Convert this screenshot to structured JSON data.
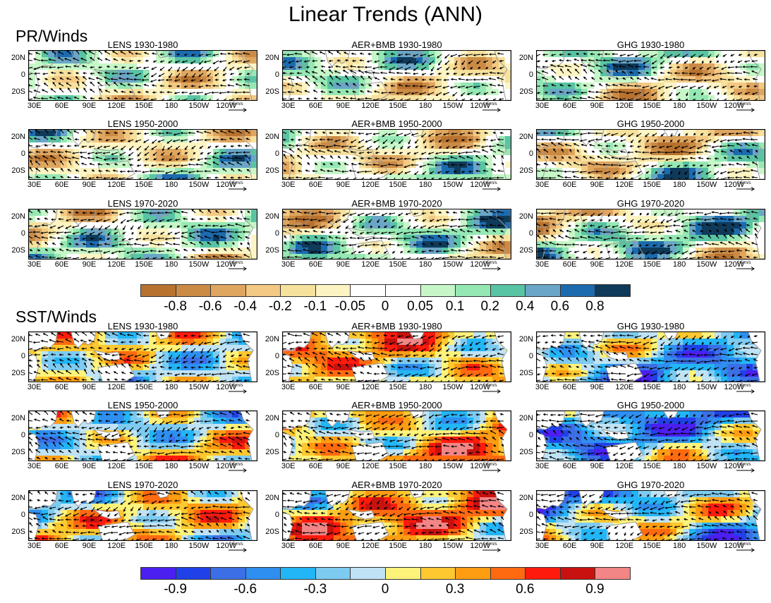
{
  "title": "Linear Trends (ANN)",
  "sections": [
    {
      "label": "PR/Winds",
      "kind": "pr"
    },
    {
      "label": "SST/Winds",
      "kind": "sst"
    }
  ],
  "panel_titles": [
    [
      "LENS 1930-1980",
      "AER+BMB 1930-1980",
      "GHG 1930-1980"
    ],
    [
      "LENS 1950-2000",
      "AER+BMB 1950-2000",
      "GHG 1950-2000"
    ],
    [
      "LENS 1970-2020",
      "AER+BMB 1970-2020",
      "GHG 1970-2020"
    ]
  ],
  "y_ticks": [
    "20N",
    "0",
    "20S"
  ],
  "x_ticks": [
    "30E",
    "60E",
    "90E",
    "120E",
    "150E",
    "180",
    "150W",
    "120W"
  ],
  "reference_vector": "0.5 m/s",
  "pr_colorbar": {
    "colors": [
      "#b8722f",
      "#cb8b45",
      "#dfa660",
      "#f3c983",
      "#f6e19d",
      "#fdf4c3",
      "#ffffff",
      "#ffffff",
      "#c7f7c8",
      "#95e8b4",
      "#59c4a3",
      "#6aa6c7",
      "#1c6bae",
      "#0f3a5a"
    ],
    "labels": [
      "-0.8",
      "-0.6",
      "-0.4",
      "-0.2",
      "-0.1",
      "-0.05",
      "0",
      "0.05",
      "0.1",
      "0.2",
      "0.4",
      "0.6",
      "0.8"
    ]
  },
  "sst_colorbar": {
    "colors": [
      "#4b1ff0",
      "#2141e8",
      "#3c6fe6",
      "#2f8ff0",
      "#23b6f6",
      "#7dcbf1",
      "#bfe3f4",
      "#fdf27a",
      "#fdc830",
      "#fe9c12",
      "#ff6a10",
      "#ff1a0e",
      "#c8120f",
      "#f28585"
    ],
    "labels": [
      "-0.9",
      "-0.6",
      "-0.3",
      "0",
      "0.3",
      "0.6",
      "0.9"
    ]
  },
  "colors": {
    "land": "#9a9a9a",
    "arrow": "#000000"
  }
}
